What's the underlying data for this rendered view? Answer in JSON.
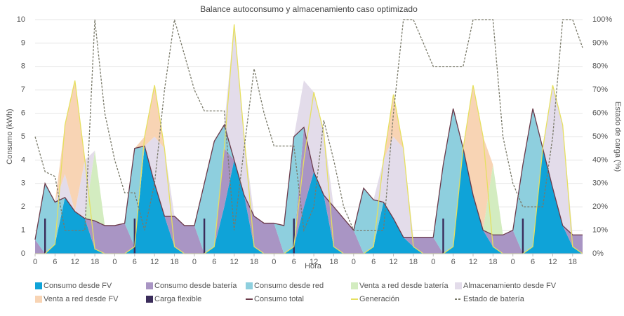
{
  "chart_data": {
    "type": "area",
    "title": "Balance autoconsumo y almacenamiento caso optimizado",
    "xlabel": "Hora",
    "ylabel": "Consumo (kWh)",
    "y2label": "Estado de carga (%)",
    "x": [
      0,
      3,
      6,
      9,
      12,
      15,
      18,
      21,
      24,
      27,
      30,
      33,
      36,
      39,
      42,
      45,
      48,
      51,
      54,
      57,
      60,
      63,
      66,
      69,
      72,
      75,
      78,
      81,
      84,
      87,
      90,
      93,
      96,
      99,
      102,
      105,
      108,
      111,
      114,
      117,
      120,
      123,
      126,
      129,
      132,
      135,
      138,
      141,
      144,
      147,
      150,
      153,
      156,
      159,
      162,
      165
    ],
    "xlim": [
      0,
      165
    ],
    "xticks": [
      {
        "value": 0,
        "label": "0"
      },
      {
        "value": 6,
        "label": "6"
      },
      {
        "value": 12,
        "label": "12"
      },
      {
        "value": 18,
        "label": "18"
      },
      {
        "value": 24,
        "label": "0"
      },
      {
        "value": 30,
        "label": "6"
      },
      {
        "value": 36,
        "label": "12"
      },
      {
        "value": 42,
        "label": "18"
      },
      {
        "value": 48,
        "label": "0"
      },
      {
        "value": 54,
        "label": "6"
      },
      {
        "value": 60,
        "label": "12"
      },
      {
        "value": 66,
        "label": "18"
      },
      {
        "value": 72,
        "label": "0"
      },
      {
        "value": 78,
        "label": "6"
      },
      {
        "value": 84,
        "label": "12"
      },
      {
        "value": 90,
        "label": "18"
      },
      {
        "value": 96,
        "label": "0"
      },
      {
        "value": 102,
        "label": "6"
      },
      {
        "value": 108,
        "label": "12"
      },
      {
        "value": 114,
        "label": "18"
      },
      {
        "value": 120,
        "label": "0"
      },
      {
        "value": 126,
        "label": "6"
      },
      {
        "value": 132,
        "label": "12"
      },
      {
        "value": 138,
        "label": "18"
      },
      {
        "value": 144,
        "label": "0"
      },
      {
        "value": 150,
        "label": "6"
      },
      {
        "value": 156,
        "label": "12"
      },
      {
        "value": 162,
        "label": "18"
      }
    ],
    "ylim": [
      0,
      10
    ],
    "yticks": [
      0,
      1,
      2,
      3,
      4,
      5,
      6,
      7,
      8,
      9,
      10
    ],
    "y2lim": [
      0,
      100
    ],
    "y2ticks": [
      {
        "value": 0,
        "label": "0%"
      },
      {
        "value": 10,
        "label": "10%"
      },
      {
        "value": 20,
        "label": "20%"
      },
      {
        "value": 30,
        "label": "30%"
      },
      {
        "value": 40,
        "label": "40%"
      },
      {
        "value": 50,
        "label": "50%"
      },
      {
        "value": 60,
        "label": "60%"
      },
      {
        "value": 70,
        "label": "70%"
      },
      {
        "value": 80,
        "label": "80%"
      },
      {
        "value": 90,
        "label": "90%"
      },
      {
        "value": 100,
        "label": "100%"
      }
    ],
    "series": [
      {
        "name": "Consumo desde FV",
        "kind": "area",
        "color": "#0fa3d8",
        "values": [
          0,
          0,
          0.4,
          2.4,
          1.8,
          1.5,
          0.2,
          0,
          0,
          0,
          0.3,
          4.6,
          3.0,
          1.6,
          0.3,
          0,
          0,
          0,
          0.3,
          2.0,
          4.0,
          2.5,
          0.3,
          0,
          0,
          0,
          0.3,
          2.0,
          3.5,
          2.5,
          0.3,
          0,
          0,
          0,
          0.3,
          2.2,
          1.5,
          0.7,
          0.3,
          0,
          0,
          0,
          0.3,
          4.5,
          2.5,
          1.0,
          0.3,
          0,
          0,
          0,
          0.3,
          4.5,
          2.8,
          1.2,
          0.3,
          0
        ]
      },
      {
        "name": "Consumo desde batería",
        "kind": "area",
        "color": "#a995c4",
        "values": [
          0.6,
          0,
          0,
          0,
          0,
          0,
          1.2,
          1.2,
          1.2,
          1.3,
          0,
          0,
          0,
          0,
          1.3,
          1.2,
          1.2,
          0,
          0,
          2.5,
          0,
          0,
          1.3,
          1.3,
          1.3,
          0,
          0,
          3.4,
          0,
          0,
          1.7,
          1.5,
          1.0,
          0,
          0,
          0,
          0,
          0,
          0.4,
          0.7,
          0.7,
          0,
          0,
          0,
          0,
          0,
          0.5,
          0.8,
          1.0,
          0,
          0,
          0,
          0,
          0,
          0.5,
          0.8
        ]
      },
      {
        "name": "Consumo desde red",
        "kind": "area",
        "color": "#8ecfde",
        "values": [
          0,
          3.0,
          1.8,
          0,
          0,
          0,
          0,
          0,
          0,
          0,
          4.2,
          0,
          0,
          0,
          0,
          0,
          0,
          3.0,
          4.5,
          1.0,
          0,
          0,
          0,
          0,
          0,
          1.2,
          4.7,
          0,
          0,
          0,
          0,
          0,
          0,
          2.8,
          2.0,
          0,
          0,
          0,
          0,
          0,
          0,
          3.8,
          5.9,
          0,
          0,
          0,
          0,
          0,
          0,
          3.8,
          5.9,
          0,
          0,
          0,
          0,
          0
        ]
      },
      {
        "name": "Venta a red desde batería",
        "kind": "area",
        "color": "#d3ecc0",
        "values": [
          0,
          0,
          0,
          0,
          0,
          0,
          3.0,
          0,
          0,
          0,
          0,
          0,
          0,
          0,
          0,
          0,
          0,
          0,
          0,
          0,
          0,
          0,
          0,
          0,
          0,
          0,
          0,
          0,
          0,
          0,
          0,
          0,
          0,
          0,
          0,
          0,
          0,
          0,
          0,
          0,
          0,
          0,
          0,
          0,
          0,
          0,
          3.0,
          0,
          0,
          0,
          0,
          0,
          0,
          0,
          0,
          0
        ]
      },
      {
        "name": "Almacenamiento desde FV",
        "kind": "area",
        "color": "#e3dcea",
        "values": [
          0,
          0,
          0,
          1.0,
          0,
          2.5,
          0,
          0,
          0,
          0,
          0,
          0,
          2.0,
          2.9,
          0,
          0,
          0,
          0,
          0,
          0,
          5.8,
          2.5,
          0,
          0,
          0,
          0,
          0,
          2.0,
          3.4,
          2.7,
          0,
          0,
          0,
          0,
          0,
          1.8,
          3.5,
          3.8,
          0,
          0,
          0,
          0,
          0,
          0,
          0,
          0,
          0,
          0,
          0,
          0,
          0,
          0,
          4.4,
          4.3,
          0,
          0
        ]
      },
      {
        "name": "Venta a red desde FV",
        "kind": "area",
        "color": "#f8d4b4",
        "values": [
          0,
          0,
          0,
          2.1,
          5.6,
          0,
          0,
          0,
          0,
          0,
          0,
          0.4,
          2.2,
          0,
          0,
          0,
          0,
          0,
          0,
          0,
          0,
          0,
          0,
          0,
          0,
          0,
          0,
          0,
          0,
          0,
          0,
          0,
          0,
          0,
          0,
          0,
          1.8,
          0,
          0,
          0,
          0,
          0,
          0,
          0,
          4.7,
          4.0,
          0,
          0,
          0,
          0,
          0,
          0,
          0,
          0,
          0,
          0
        ]
      },
      {
        "name": "Carga flexible",
        "kind": "bar",
        "color": "#3a2c5a",
        "values": [
          0,
          1.5,
          0,
          0,
          0,
          0,
          0,
          0,
          0,
          0,
          1.5,
          0,
          0,
          0,
          0,
          0,
          0,
          1.5,
          0,
          0,
          0,
          0,
          0,
          0,
          0,
          0,
          1.5,
          0,
          0,
          0,
          0,
          0,
          0,
          0,
          0,
          0,
          0,
          0,
          0,
          0,
          0,
          1.5,
          0,
          0,
          0,
          0,
          0,
          0,
          0,
          1.5,
          0,
          0,
          0,
          0,
          0,
          0
        ]
      },
      {
        "name": "Consumo total",
        "kind": "line",
        "color": "#6b3a4a",
        "values": [
          0.6,
          3.0,
          2.2,
          2.4,
          1.8,
          1.5,
          1.4,
          1.2,
          1.2,
          1.3,
          4.5,
          4.6,
          3.0,
          1.6,
          1.6,
          1.2,
          1.2,
          3.0,
          4.8,
          5.5,
          4.0,
          2.5,
          1.6,
          1.3,
          1.3,
          1.2,
          5.0,
          5.4,
          3.5,
          2.5,
          2.0,
          1.5,
          1.0,
          2.8,
          2.3,
          2.2,
          1.5,
          0.7,
          0.7,
          0.7,
          0.7,
          3.8,
          6.2,
          4.5,
          2.5,
          1.0,
          0.8,
          0.8,
          1.0,
          3.8,
          6.2,
          4.5,
          2.8,
          1.2,
          0.8,
          0.8
        ]
      },
      {
        "name": "Generación",
        "kind": "line",
        "color": "#e6e060",
        "values": [
          0,
          0,
          0.4,
          5.5,
          7.4,
          4.0,
          0.2,
          0,
          0,
          0,
          0.3,
          5.0,
          7.2,
          4.5,
          0.3,
          0,
          0,
          0,
          0.3,
          4.5,
          9.8,
          5.0,
          0.3,
          0,
          0,
          0,
          0.3,
          4.0,
          6.9,
          5.2,
          0.3,
          0,
          0,
          0,
          0.3,
          4.0,
          6.8,
          4.5,
          0.3,
          0,
          0,
          0,
          0.3,
          4.5,
          7.2,
          5.0,
          0.3,
          0,
          0,
          0,
          0.3,
          4.5,
          7.2,
          5.5,
          0.3,
          0
        ]
      },
      {
        "name": "Estado de batería",
        "kind": "line",
        "dashed": true,
        "axis": "y2",
        "color": "#7a7a6a",
        "values": [
          50,
          35,
          33,
          10,
          10,
          10,
          100,
          60,
          40,
          26,
          26,
          10,
          30,
          70,
          100,
          85,
          70,
          61,
          61,
          61,
          10,
          45,
          79,
          60,
          46,
          46,
          46,
          10,
          20,
          57,
          40,
          20,
          10,
          10,
          10,
          10,
          60,
          100,
          100,
          90,
          80,
          80,
          80,
          80,
          100,
          100,
          100,
          50,
          30,
          20,
          20,
          20,
          50,
          100,
          100,
          88
        ]
      }
    ]
  }
}
